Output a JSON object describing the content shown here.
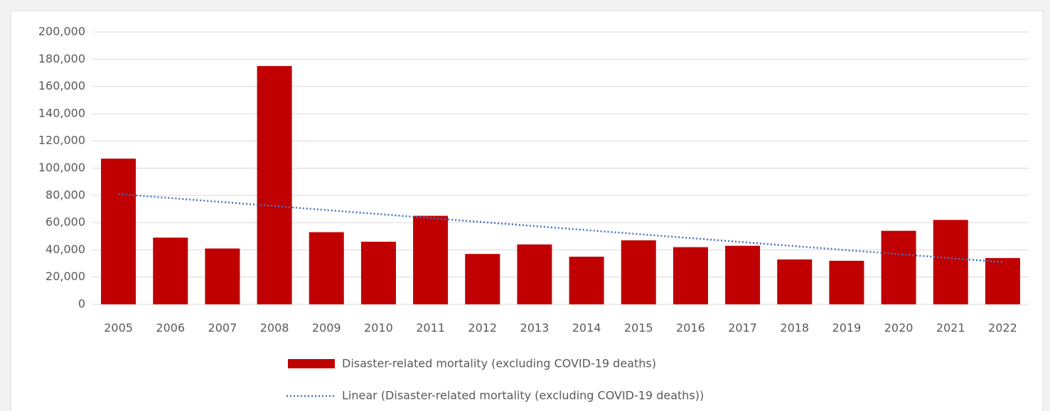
{
  "chart_data": {
    "type": "bar",
    "categories": [
      "2005",
      "2006",
      "2007",
      "2008",
      "2009",
      "2010",
      "2011",
      "2012",
      "2013",
      "2014",
      "2015",
      "2016",
      "2017",
      "2018",
      "2019",
      "2020",
      "2021",
      "2022"
    ],
    "series": [
      {
        "name": "Disaster-related mortality (excluding COVID-19 deaths)",
        "color": "#c00000",
        "values": [
          107000,
          49000,
          41000,
          175000,
          53000,
          46000,
          65000,
          37000,
          44000,
          35000,
          47000,
          42000,
          43000,
          33000,
          32000,
          54000,
          62000,
          34000
        ]
      }
    ],
    "trendline": {
      "name": "Linear (Disaster-related mortality (excluding COVID-19 deaths))",
      "color": "#4472c4",
      "x": [
        "2005",
        "2022"
      ],
      "values": [
        81000,
        31000
      ]
    },
    "ylim": [
      0,
      200000
    ],
    "yticks": [
      0,
      {
        "value": 20000,
        "label": "20,000"
      },
      {
        "value": 40000,
        "label": "40,000"
      },
      {
        "value": 60000,
        "label": "60,000"
      },
      {
        "value": 80000,
        "label": "80,000"
      },
      {
        "value": 100000,
        "label": "100,000"
      },
      {
        "value": 120000,
        "label": "120,000"
      },
      {
        "value": 140000,
        "label": "140,000"
      },
      {
        "value": 160000,
        "label": "160,000"
      },
      {
        "value": 180000,
        "label": "180,000"
      },
      {
        "value": 200000,
        "label": "200,000"
      }
    ],
    "grid": true
  }
}
